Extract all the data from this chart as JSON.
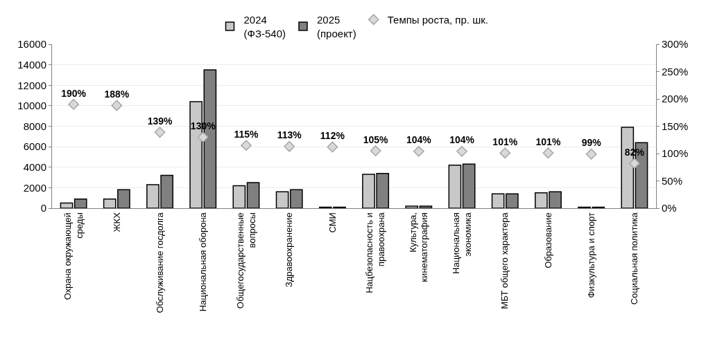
{
  "chart_data": {
    "type": "bar",
    "categories": [
      "Охрана окружающей\nсреды",
      "ЖКХ",
      "Обслуживание госдолга",
      "Национальная оборона",
      "Общегосударственные\nвопросы",
      "Здравоохранение",
      "СМИ",
      "Нацбезопасность и\nправоохрана",
      "Культура,\nкинематография",
      "Национальная\nэкономика",
      "МБТ общего характера",
      "Образование",
      "Физкультура и спорт",
      "Социальная политика"
    ],
    "series": [
      {
        "name": "2024\n(ФЗ-540)",
        "color": "#c8c8c8",
        "values": [
          500,
          900,
          2300,
          10400,
          2200,
          1600,
          100,
          3300,
          200,
          4200,
          1400,
          1500,
          100,
          7900
        ]
      },
      {
        "name": "2025\n(проект)",
        "color": "#808080",
        "values": [
          900,
          1800,
          3200,
          13500,
          2500,
          1800,
          100,
          3400,
          200,
          4300,
          1400,
          1600,
          100,
          6400
        ]
      },
      {
        "name": "Темпы роста, пр. шк.",
        "type": "scatter",
        "axis": "y2",
        "marker": "diamond",
        "color": "#d9d9d9",
        "values": [
          190,
          188,
          139,
          130,
          115,
          113,
          112,
          105,
          104,
          104,
          101,
          101,
          99,
          82
        ],
        "value_labels": [
          "190%",
          "188%",
          "139%",
          "130%",
          "115%",
          "113%",
          "112%",
          "105%",
          "104%",
          "104%",
          "101%",
          "101%",
          "99%",
          "82%"
        ]
      }
    ],
    "ylim": [
      0,
      16000
    ],
    "yticks": [
      0,
      2000,
      4000,
      6000,
      8000,
      10000,
      12000,
      14000,
      16000
    ],
    "y2lim": [
      0,
      300
    ],
    "y2ticks": [
      {
        "value": 0,
        "label": "0%"
      },
      {
        "value": 50,
        "label": "50%"
      },
      {
        "value": 100,
        "label": "100%"
      },
      {
        "value": 150,
        "label": "150%"
      },
      {
        "value": 200,
        "label": "200%"
      },
      {
        "value": 250,
        "label": "250%"
      },
      {
        "value": 300,
        "label": "300%"
      }
    ],
    "grid": "y",
    "legend": "top"
  }
}
